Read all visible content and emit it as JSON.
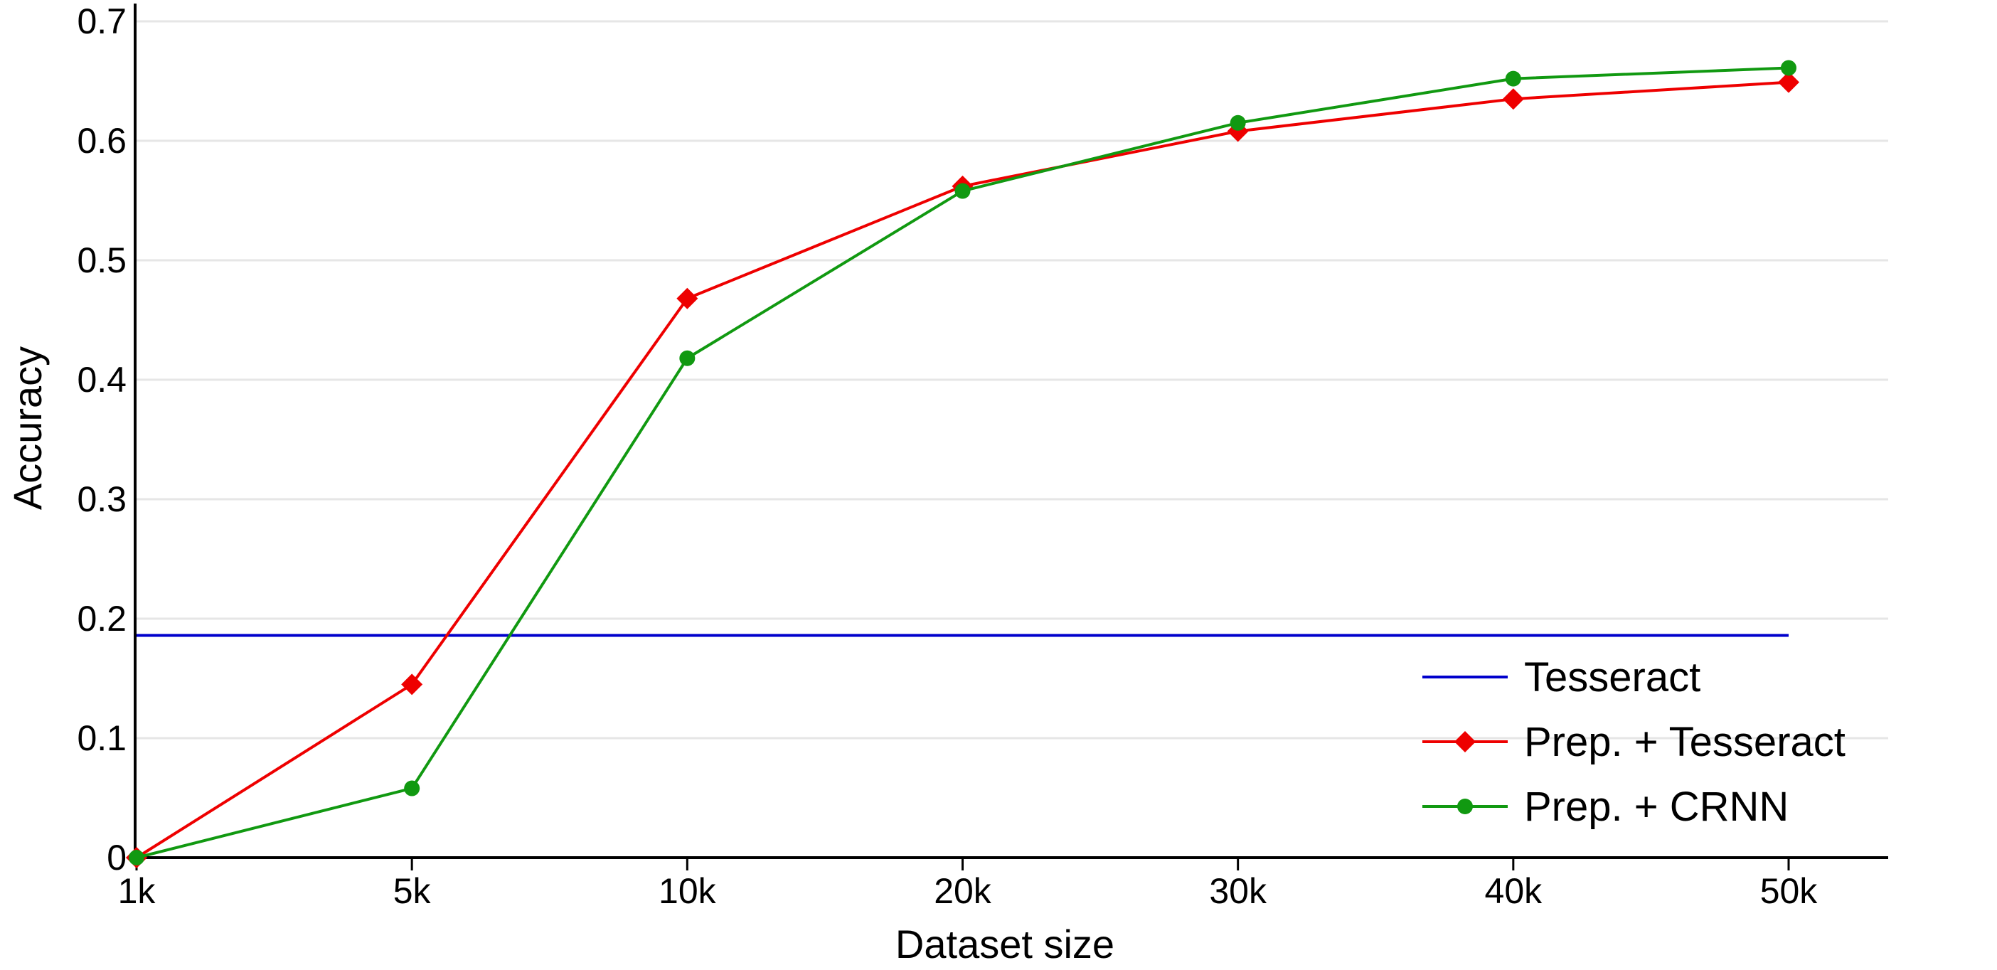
{
  "chart_data": {
    "type": "line",
    "title": "",
    "xlabel": "Dataset size",
    "ylabel": "Accuracy",
    "categories": [
      "1k",
      "5k",
      "10k",
      "20k",
      "30k",
      "40k",
      "50k"
    ],
    "ylim": [
      0,
      0.7
    ],
    "yticks": [
      "0",
      "0.1",
      "0.2",
      "0.3",
      "0.4",
      "0.5",
      "0.6",
      "0.7"
    ],
    "grid": "horizontal",
    "legend_position": "bottom-right",
    "series": [
      {
        "name": "Tesseract",
        "color": "#0000cc",
        "marker": "none",
        "values": [
          0.186,
          0.186,
          0.186,
          0.186,
          0.186,
          0.186,
          0.186
        ]
      },
      {
        "name": "Prep. + Tesseract",
        "color": "#ee0000",
        "marker": "diamond",
        "values": [
          0.0,
          0.145,
          0.468,
          0.562,
          0.608,
          0.635,
          0.649
        ]
      },
      {
        "name": "Prep. + CRNN",
        "color": "#119911",
        "marker": "circle",
        "values": [
          0.0,
          0.058,
          0.418,
          0.558,
          0.615,
          0.652,
          0.661
        ]
      }
    ]
  }
}
